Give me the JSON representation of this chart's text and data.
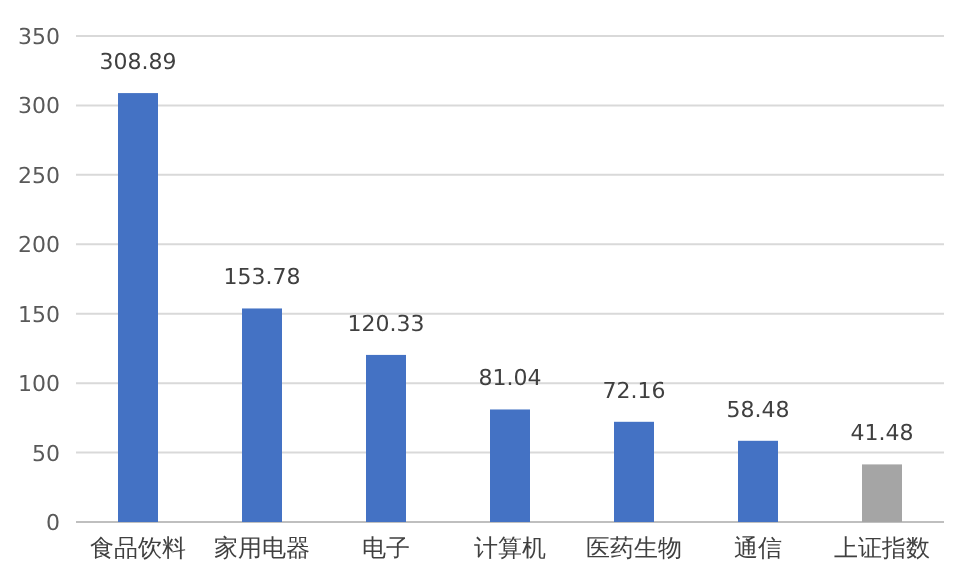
{
  "chart_data": {
    "type": "bar",
    "categories": [
      "食品饮料",
      "家用电器",
      "电子",
      "计算机",
      "医药生物",
      "通信",
      "上证指数"
    ],
    "values": [
      308.89,
      153.78,
      120.33,
      81.04,
      72.16,
      58.48,
      41.48
    ],
    "colors": [
      "#4472c4",
      "#4472c4",
      "#4472c4",
      "#4472c4",
      "#4472c4",
      "#4472c4",
      "#a5a5a5"
    ],
    "ylim": [
      0,
      350
    ],
    "yticks": [
      0,
      50,
      100,
      150,
      200,
      250,
      300,
      350
    ],
    "grid": "y",
    "data_labels": true
  }
}
